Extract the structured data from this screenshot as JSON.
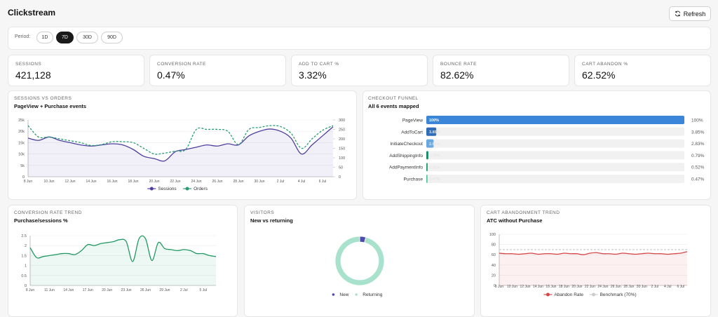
{
  "header": {
    "title": "Clickstream",
    "refresh": "Refresh"
  },
  "period": {
    "label": "Period:",
    "options": [
      "1D",
      "7D",
      "30D",
      "90D"
    ],
    "selected": "7D"
  },
  "kpis": [
    {
      "label": "SESSIONS",
      "value": "421,128"
    },
    {
      "label": "CONVERSION RATE",
      "value": "0.47%"
    },
    {
      "label": "ADD TO CART %",
      "value": "3.32%"
    },
    {
      "label": "BOUNCE RATE",
      "value": "82.62%"
    },
    {
      "label": "CART ABANDON %",
      "value": "62.52%"
    }
  ],
  "chart_data": [
    {
      "type": "line",
      "title": "SESSIONS VS ORDERS",
      "subtitle": "PageView + Purchase events",
      "categories": [
        "8 Jun",
        null,
        "10 Jun",
        null,
        "12 Jun",
        null,
        "14 Jun",
        null,
        "16 Jun",
        null,
        "18 Jun",
        null,
        "20 Jun",
        null,
        "22 Jun",
        null,
        "24 Jun",
        null,
        "26 Jun",
        null,
        "28 Jun",
        null,
        "30 Jun",
        null,
        "2 Jul",
        null,
        "4 Jul",
        null,
        "6 Jul",
        null
      ],
      "series": [
        {
          "name": "Sessions",
          "color": "#4c3fa0",
          "area": true,
          "values": [
            17000,
            16000,
            17500,
            16000,
            15000,
            14000,
            13500,
            14000,
            14500,
            14000,
            12000,
            9000,
            8000,
            7000,
            11000,
            12000,
            13000,
            14000,
            13500,
            14500,
            14000,
            18000,
            20000,
            21000,
            20000,
            17000,
            10000,
            14000,
            18000,
            22000
          ]
        },
        {
          "name": "Orders",
          "color": "#2a9d72",
          "dash": true,
          "axis": "y2",
          "values": [
            270,
            210,
            210,
            200,
            190,
            180,
            165,
            170,
            185,
            185,
            180,
            150,
            120,
            125,
            135,
            145,
            250,
            250,
            250,
            240,
            170,
            250,
            260,
            270,
            265,
            230,
            150,
            200,
            245,
            270
          ]
        }
      ],
      "ylim": [
        0,
        25000
      ],
      "yticks": [
        0,
        {
          "value": 5000,
          "label": "5k"
        },
        {
          "value": 10000,
          "label": "10k"
        },
        {
          "value": 15000,
          "label": "15k"
        },
        {
          "value": 20000,
          "label": "20k"
        },
        {
          "value": 25000,
          "label": "25k"
        }
      ],
      "y2lim": [
        0,
        300
      ],
      "y2ticks": [
        0,
        50,
        100,
        150,
        200,
        250,
        300
      ],
      "grid": true
    },
    {
      "type": "hbar",
      "title": "CHECKOUT FUNNEL",
      "subtitle": "All 6 events mapped",
      "categories": [
        "PageView",
        "AddToCart",
        "InitiateCheckout",
        "AddShippingInfo",
        "AddPaymentInfo",
        "Purchase"
      ],
      "values": [
        100,
        3.85,
        2.83,
        0.79,
        0.52,
        0.47
      ],
      "value_labels": [
        "100%",
        "3.85%",
        "2.83%",
        "0.79%",
        "0.52%",
        "0.47%"
      ],
      "colors": [
        "#3b86d9",
        "#2f6db8",
        "#6aa8e2",
        "#188a68",
        "#23a06f",
        "#4fc79a"
      ],
      "xlim": [
        0,
        100
      ]
    },
    {
      "type": "line",
      "title": "CONVERSION RATE TREND",
      "subtitle": "Purchase/sessions %",
      "categories": [
        "8 Jun",
        null,
        null,
        "11 Jun",
        null,
        null,
        "14 Jun",
        null,
        null,
        "17 Jun",
        null,
        null,
        "20 Jun",
        null,
        null,
        "23 Jun",
        null,
        null,
        "26 Jun",
        null,
        null,
        "29 Jun",
        null,
        null,
        "2 Jul",
        null,
        null,
        "5 Jul",
        null,
        null
      ],
      "series": [
        {
          "name": "Conversion",
          "color": "#1f9a62",
          "area": true,
          "values": [
            1.9,
            1.4,
            1.45,
            1.5,
            1.55,
            1.6,
            1.6,
            1.55,
            1.75,
            2.05,
            2.0,
            2.1,
            2.15,
            2.2,
            2.3,
            2.2,
            1.2,
            2.35,
            2.35,
            1.25,
            2.15,
            1.85,
            1.8,
            1.75,
            1.8,
            1.75,
            1.6,
            1.6,
            1.5,
            1.45
          ]
        }
      ],
      "ylim": [
        0,
        2.5
      ],
      "yticks": [
        0,
        0.5,
        1,
        1.5,
        2,
        2.5
      ],
      "grid": true,
      "legend": false
    },
    {
      "type": "pie",
      "donut": true,
      "title": "VISITORS",
      "subtitle": "New vs returning",
      "categories": [
        "New",
        "Returning"
      ],
      "values": [
        4,
        96
      ],
      "colors": [
        "#4f4ab0",
        "#a8e2cc"
      ]
    },
    {
      "type": "line",
      "title": "CART ABANDONMENT TREND",
      "subtitle": "ATC without Purchase",
      "categories": [
        "8 Jun",
        null,
        "10 Jun",
        null,
        "12 Jun",
        null,
        "14 Jun",
        null,
        "16 Jun",
        null,
        "18 Jun",
        null,
        "20 Jun",
        null,
        "22 Jun",
        null,
        "24 Jun",
        null,
        "26 Jun",
        null,
        "28 Jun",
        null,
        "30 Jun",
        null,
        "2 Jul",
        null,
        "4 Jul",
        null,
        "6 Jul",
        null
      ],
      "series": [
        {
          "name": "Abandon Rate",
          "color": "#d64545",
          "area": true,
          "values": [
            63,
            62,
            62,
            61,
            62,
            63,
            61,
            62,
            62,
            61,
            63,
            62,
            62,
            60,
            63,
            64,
            62,
            62,
            61,
            63,
            62,
            61,
            62,
            63,
            62,
            62,
            61,
            62,
            63,
            66
          ]
        },
        {
          "name": "Benchmark (70%)",
          "color": "#cccccc",
          "dash": true,
          "values": [
            70,
            70,
            70,
            70,
            70,
            70,
            70,
            70,
            70,
            70,
            70,
            70,
            70,
            70,
            70,
            70,
            70,
            70,
            70,
            70,
            70,
            70,
            70,
            70,
            70,
            70,
            70,
            70,
            70,
            70
          ]
        }
      ],
      "ylim": [
        0,
        100
      ],
      "yticks": [
        0,
        20,
        40,
        60,
        80,
        100
      ],
      "grid": true
    }
  ]
}
